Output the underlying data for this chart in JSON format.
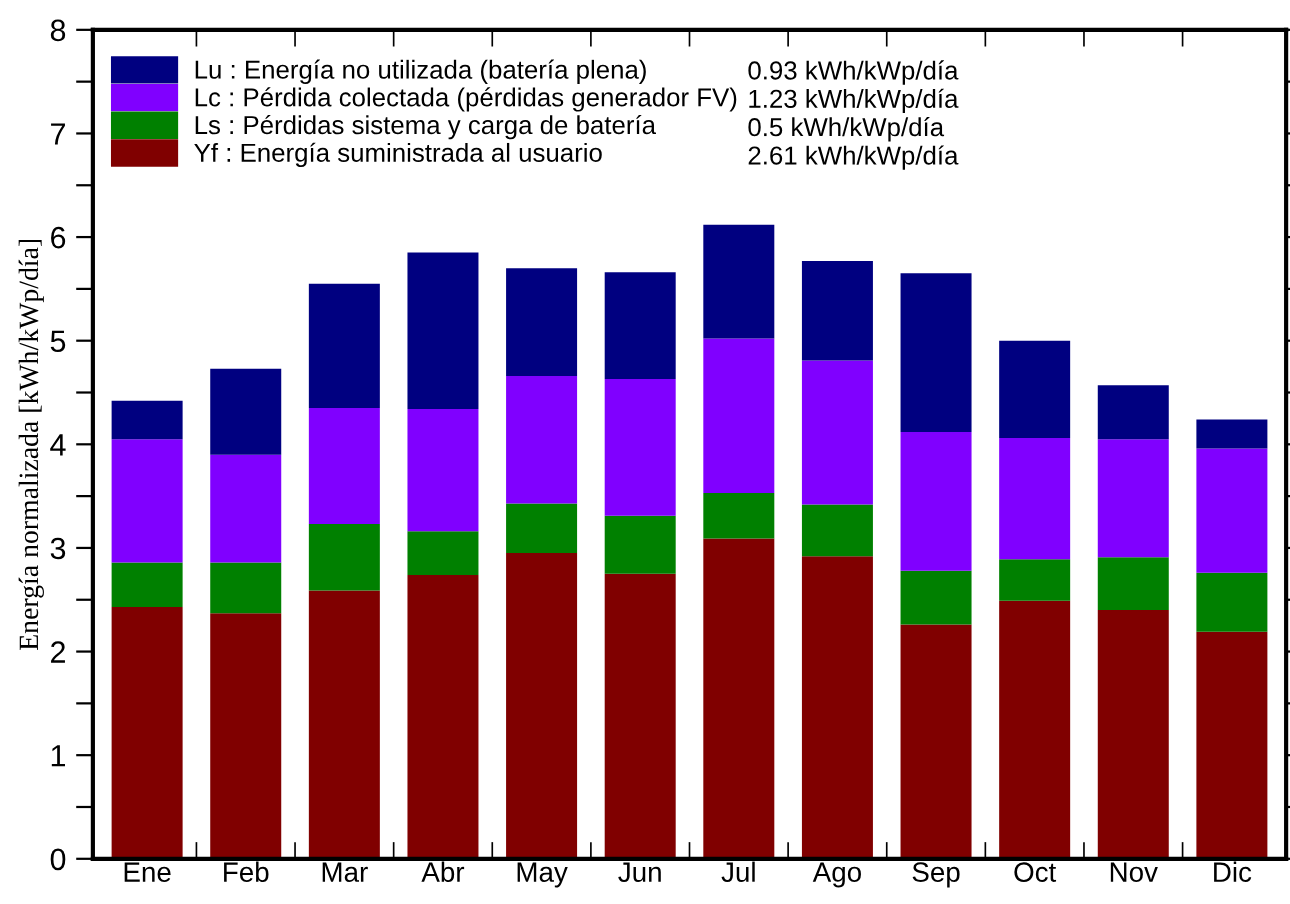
{
  "chart_data": {
    "type": "bar",
    "stacked": true,
    "ylabel": "Energía normalizada [kWh/kWp/día]",
    "categories": [
      "Ene",
      "Feb",
      "Mar",
      "Abr",
      "May",
      "Jun",
      "Jul",
      "Ago",
      "Sep",
      "Oct",
      "Nov",
      "Dic"
    ],
    "series": [
      {
        "name": "Yf : Energía suministrada al usuario",
        "color": "#800000",
        "values": [
          2.43,
          2.37,
          2.59,
          2.74,
          2.95,
          2.75,
          3.09,
          2.92,
          2.26,
          2.49,
          2.4,
          2.19
        ]
      },
      {
        "name": "Ls : Pérdidas sistema y carga de batería",
        "color": "#008000",
        "values": [
          0.43,
          0.49,
          0.64,
          0.42,
          0.48,
          0.56,
          0.44,
          0.5,
          0.52,
          0.4,
          0.51,
          0.57
        ]
      },
      {
        "name": "Lc : Pérdida colectada (pérdidas generador FV)",
        "color": "#8000ff",
        "values": [
          1.19,
          1.04,
          1.12,
          1.18,
          1.23,
          1.32,
          1.49,
          1.39,
          1.34,
          1.17,
          1.14,
          1.2
        ]
      },
      {
        "name": "Lu : Energía no utilizada (batería plena)",
        "color": "#000080",
        "values": [
          0.37,
          0.83,
          1.2,
          1.51,
          1.04,
          1.03,
          1.1,
          0.96,
          1.53,
          0.94,
          0.52,
          0.28
        ]
      }
    ],
    "annotations": [
      "2.61 kWh/kWp/día",
      "0.5 kWh/kWp/día",
      "1.23 kWh/kWp/día",
      "0.93 kWh/kWp/día"
    ],
    "ylim": [
      0,
      8
    ],
    "yticks": [
      0,
      {
        "value": 0.5,
        "label": null
      },
      1,
      {
        "value": 1.5,
        "label": null
      },
      2,
      {
        "value": 2.5,
        "label": null
      },
      3,
      {
        "value": 3.5,
        "label": null
      },
      4,
      {
        "value": 4.5,
        "label": null
      },
      5,
      {
        "value": 5.5,
        "label": null
      },
      6,
      {
        "value": 6.5,
        "label": null
      },
      7,
      {
        "value": 7.5,
        "label": null
      },
      8
    ],
    "grid": false,
    "legend": "top left"
  }
}
